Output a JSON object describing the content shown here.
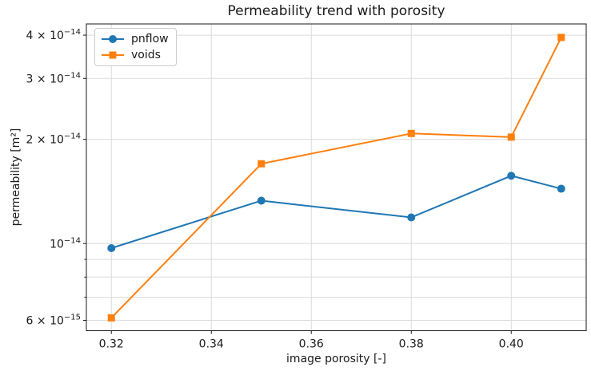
{
  "chart_data": {
    "type": "line",
    "title": "Permeability trend with porosity",
    "xlabel": "image porosity [-]",
    "ylabel": "permeability [m²]",
    "x": [
      0.32,
      0.35,
      0.38,
      0.4,
      0.41
    ],
    "series": [
      {
        "name": "pnflow",
        "color": "#1f77b4",
        "marker": "circle",
        "values": [
          9.7e-15,
          1.33e-14,
          1.19e-14,
          1.57e-14,
          1.44e-14
        ]
      },
      {
        "name": "voids",
        "color": "#ff7f0e",
        "marker": "square",
        "values": [
          6.1e-15,
          1.7e-14,
          2.08e-14,
          2.03e-14,
          3.94e-14
        ]
      }
    ],
    "xscale": "linear",
    "yscale": "log",
    "xlim": [
      0.315,
      0.415
    ],
    "ylim": [
      5.6e-15,
      4.31e-14
    ],
    "grid": true,
    "grid_color": "#dcdcdc",
    "legend_position": "upper left",
    "xticks": [
      {
        "v": 0.32,
        "label": "0.32"
      },
      {
        "v": 0.34,
        "label": "0.34"
      },
      {
        "v": 0.36,
        "label": "0.36"
      },
      {
        "v": 0.38,
        "label": "0.38"
      },
      {
        "v": 0.4,
        "label": "0.40"
      }
    ],
    "yticks": [
      {
        "v": 4e-14,
        "base": "4 × 10",
        "exp": "−14"
      },
      {
        "v": 3e-14,
        "base": "3 × 10",
        "exp": "−14"
      },
      {
        "v": 2e-14,
        "base": "2 × 10",
        "exp": "−14"
      },
      {
        "v": 1e-14,
        "base": "10",
        "exp": "−14"
      },
      {
        "v": 6e-15,
        "base": "6 × 10",
        "exp": "−15"
      }
    ],
    "y_minor_gridlines": [
      9e-15,
      8e-15,
      7e-15
    ]
  }
}
